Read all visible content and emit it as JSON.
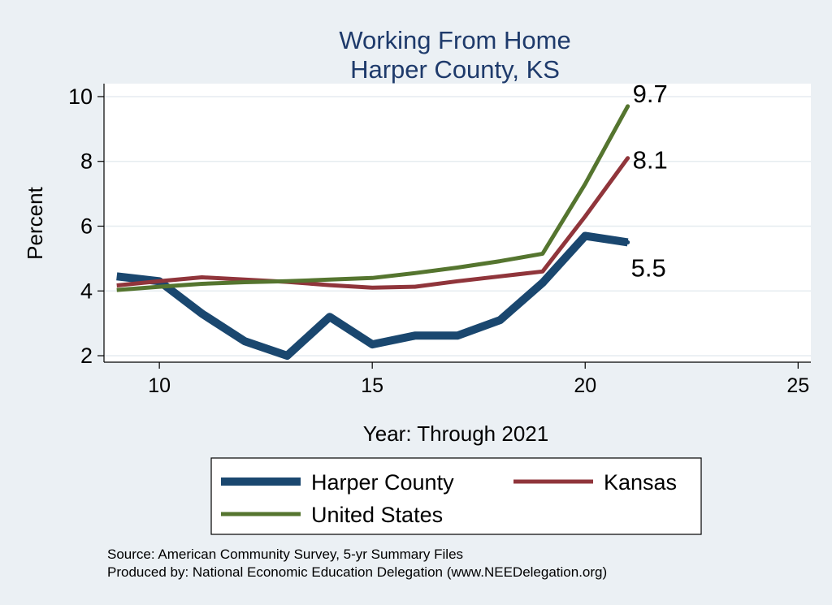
{
  "chart_data": {
    "type": "line",
    "title": [
      "Working From Home",
      "Harper County, KS"
    ],
    "xlabel": "Year: Through 2021",
    "ylabel": "Percent",
    "xlim": [
      8.7,
      25.3
    ],
    "ylim": [
      1.8,
      10.4
    ],
    "x_ticks": [
      10,
      15,
      20,
      25
    ],
    "y_ticks": [
      2,
      4,
      6,
      8,
      10
    ],
    "grid": "horizontal",
    "x": [
      9,
      10,
      11,
      12,
      13,
      14,
      15,
      16,
      17,
      18,
      19,
      20,
      21
    ],
    "series": [
      {
        "name": "Harper County",
        "color": "#1a476f",
        "values": [
          4.45,
          4.3,
          3.3,
          2.45,
          2.0,
          3.2,
          2.35,
          2.62,
          2.62,
          3.1,
          4.25,
          5.7,
          5.5
        ],
        "end_label": "5.5"
      },
      {
        "name": "Kansas",
        "color": "#90353b",
        "values": [
          4.17,
          4.3,
          4.42,
          4.35,
          4.28,
          4.18,
          4.1,
          4.13,
          4.3,
          4.45,
          4.6,
          6.3,
          8.1
        ],
        "end_label": "8.1"
      },
      {
        "name": "United States",
        "color": "#55752f",
        "values": [
          4.03,
          4.13,
          4.22,
          4.27,
          4.3,
          4.35,
          4.4,
          4.55,
          4.72,
          4.92,
          5.15,
          7.3,
          9.7
        ],
        "end_label": "9.7"
      }
    ],
    "legend": "bottom"
  },
  "notes": [
    "Source: American Community Survey, 5-yr Summary Files",
    "Produced by: National Economic Education Delegation (www.NEEDelegation.org)"
  ]
}
